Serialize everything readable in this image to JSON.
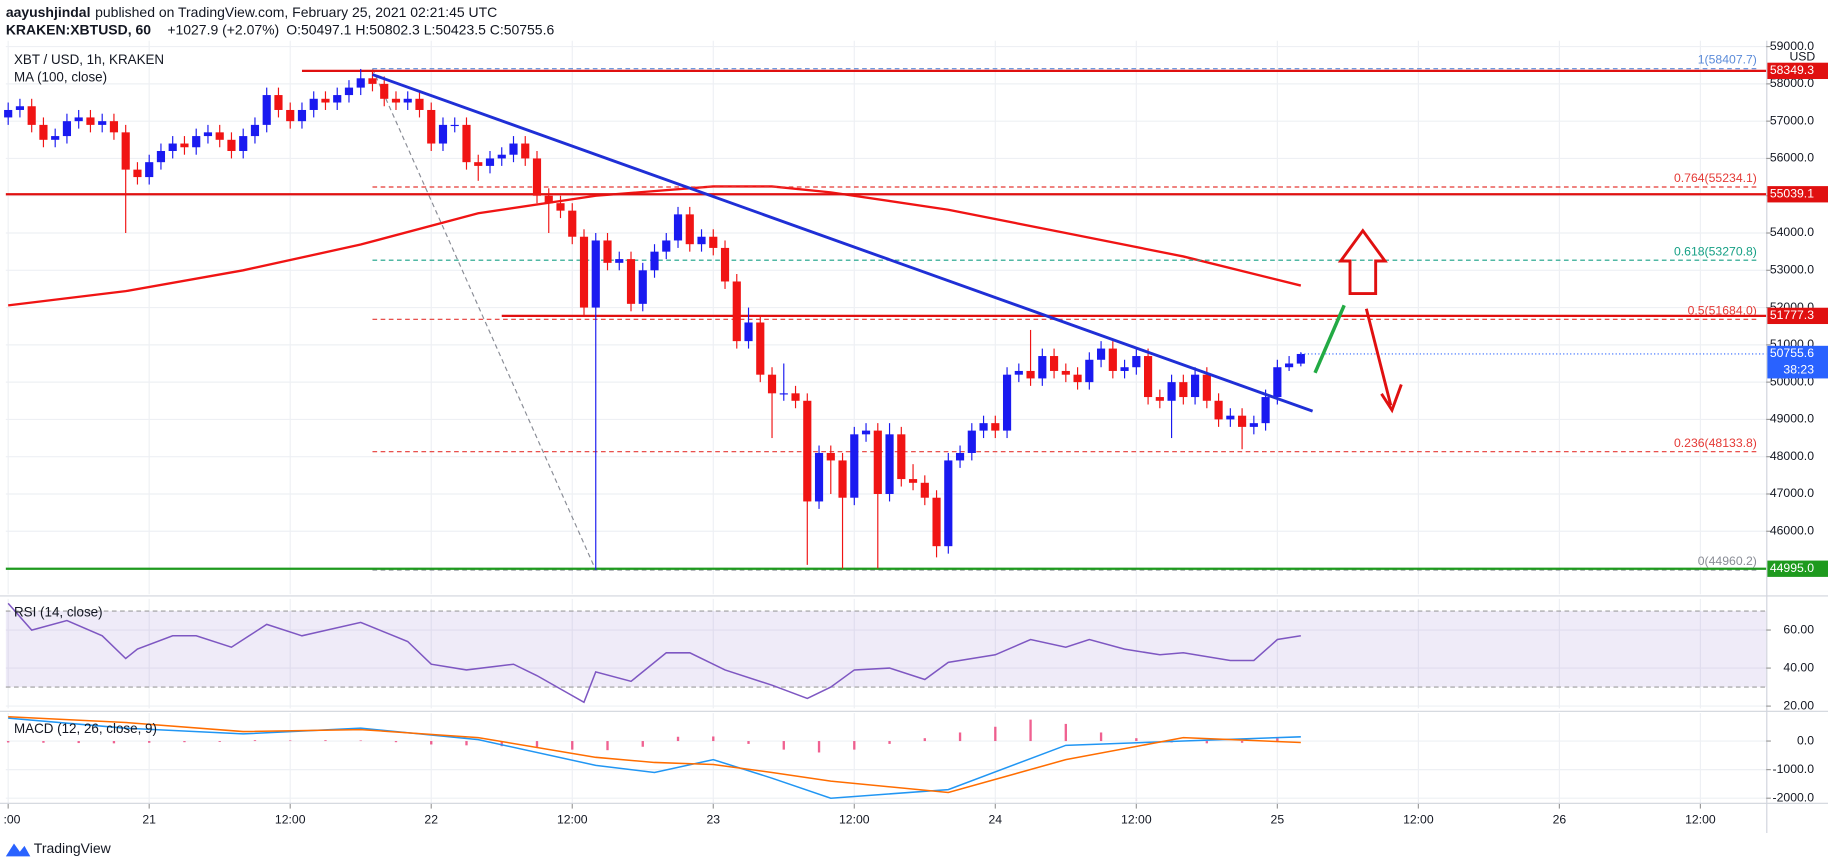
{
  "header": {
    "author": "aayushjindal",
    "published": "published on TradingView.com, February 25, 2021 02:21:45 UTC",
    "symbol": "KRAKEN:XBTUSD, 60",
    "change": "+1027.9 (+2.07%)",
    "ohlc": "O:50497.1 H:50802.3 L:50423.5 C:50755.6"
  },
  "footer": {
    "brand": "TradingView"
  },
  "chart_data": [
    {
      "type": "candlestick",
      "title": "XBT / USD, 1h, KRAKEN",
      "currency": "USD",
      "xlim": [
        -0.2,
        149.6
      ],
      "xticks": [
        {
          "value": 0,
          "label": ":00"
        },
        {
          "value": 12,
          "label": "21"
        },
        {
          "value": 24,
          "label": "12:00"
        },
        {
          "value": 36,
          "label": "22"
        },
        {
          "value": 48,
          "label": "12:00"
        },
        {
          "value": 60,
          "label": "23"
        },
        {
          "value": 72,
          "label": "12:00"
        },
        {
          "value": 84,
          "label": "24"
        },
        {
          "value": 96,
          "label": "12:00"
        },
        {
          "value": 108,
          "label": "25"
        },
        {
          "value": 120,
          "label": "12:00"
        },
        {
          "value": 132,
          "label": "26"
        },
        {
          "value": 144,
          "label": "12:00"
        }
      ],
      "ylim": [
        44312,
        59156
      ],
      "yticks": [
        {
          "value": 46000,
          "label": "46000.0"
        },
        {
          "value": 47000,
          "label": "47000.0"
        },
        {
          "value": 48000,
          "label": "48000.0"
        },
        {
          "value": 49000,
          "label": "49000.0"
        },
        {
          "value": 50000,
          "label": "50000.0"
        },
        {
          "value": 51000,
          "label": "51000.0"
        },
        {
          "value": 52000,
          "label": "52000.0"
        },
        {
          "value": 53000,
          "label": "53000.0"
        },
        {
          "value": 54000,
          "label": "54000.0"
        },
        {
          "value": 55000,
          "label": "55000.0"
        },
        {
          "value": 56000,
          "label": "56000.0"
        },
        {
          "value": 57000,
          "label": "57000.0"
        },
        {
          "value": 58000,
          "label": "58000.0"
        },
        {
          "value": 59000,
          "label": "59000.0"
        }
      ],
      "grid": true,
      "up_color": "#1a1af0",
      "down_color": "#f01414",
      "candles": {
        "open": [
          57100,
          57300,
          57400,
          56900,
          56500,
          56600,
          57000,
          57100,
          56900,
          57000,
          56700,
          55700,
          55500,
          55900,
          56200,
          56400,
          56300,
          56600,
          56700,
          56500,
          56200,
          56600,
          56900,
          57700,
          57300,
          57000,
          57300,
          57600,
          57500,
          57700,
          57900,
          58150,
          58000,
          57600,
          57500,
          57600,
          57300,
          56400,
          56900,
          56900,
          55900,
          55800,
          56000,
          56100,
          56400,
          56000,
          55000,
          54800,
          54600,
          53900,
          52000,
          53800,
          53200,
          53300,
          52100,
          53000,
          53500,
          53800,
          54500,
          53700,
          53900,
          53600,
          52700,
          51100,
          51600,
          50200,
          49700,
          49700,
          49500,
          46800,
          48100,
          47900,
          46900,
          48600,
          48700,
          47000,
          48600,
          47400,
          47300,
          46900,
          45600,
          47900,
          48100,
          48700,
          48900,
          48700,
          50200,
          50300,
          50100,
          50700,
          50300,
          50200,
          50000,
          50600,
          50900,
          50300,
          50400,
          50700,
          49600,
          49500,
          50000,
          49600,
          50200,
          49500,
          49000,
          49100,
          48800,
          48900,
          49600,
          50400,
          50497.1
        ],
        "high": [
          57500,
          57600,
          57600,
          57100,
          56800,
          57200,
          57300,
          57300,
          57200,
          57200,
          56900,
          55900,
          56100,
          56400,
          56600,
          56600,
          56800,
          56900,
          56900,
          56700,
          56800,
          57100,
          57900,
          57900,
          57500,
          57500,
          57800,
          57800,
          57900,
          58100,
          58400,
          58350,
          58200,
          57800,
          57800,
          57800,
          57500,
          57100,
          57100,
          57100,
          56100,
          56200,
          56300,
          56600,
          56600,
          56200,
          55200,
          55000,
          54800,
          54100,
          54000,
          54000,
          53500,
          53500,
          53200,
          53700,
          54000,
          54700,
          54700,
          54100,
          54100,
          53800,
          52900,
          52000,
          51800,
          50400,
          50500,
          49900,
          49700,
          48300,
          48300,
          48100,
          48800,
          48900,
          48900,
          48900,
          48800,
          47800,
          47500,
          47100,
          48100,
          48300,
          48900,
          49100,
          49100,
          50400,
          50500,
          51400,
          50900,
          50900,
          50500,
          50400,
          50800,
          51100,
          51100,
          50600,
          50900,
          50900,
          49800,
          50200,
          50200,
          50400,
          50400,
          49700,
          49300,
          49300,
          49100,
          49800,
          50600,
          50700,
          50802.3
        ],
        "low": [
          56900,
          57100,
          56700,
          56300,
          56300,
          56400,
          56800,
          56700,
          56700,
          56500,
          54000,
          55300,
          55300,
          55700,
          56000,
          56100,
          56100,
          56400,
          56300,
          56000,
          56000,
          56400,
          56700,
          57100,
          56800,
          56800,
          57100,
          57300,
          57300,
          57500,
          57700,
          57800,
          57400,
          57300,
          57300,
          57100,
          56200,
          56200,
          56700,
          55700,
          55400,
          55600,
          55800,
          55900,
          55800,
          54800,
          54000,
          54400,
          53700,
          51800,
          44960,
          53000,
          53000,
          51900,
          51900,
          52800,
          53300,
          53600,
          53500,
          53500,
          53400,
          52500,
          50900,
          50900,
          50000,
          48500,
          49500,
          49300,
          45100,
          46600,
          47000,
          45000,
          46700,
          48400,
          45000,
          46800,
          47200,
          47100,
          46700,
          45300,
          45400,
          47700,
          47900,
          48500,
          48500,
          48500,
          50000,
          49900,
          49900,
          50100,
          50000,
          49800,
          49800,
          50400,
          50100,
          50100,
          50200,
          49400,
          49300,
          48500,
          49400,
          49400,
          49300,
          48800,
          48800,
          48200,
          48600,
          48700,
          49400,
          50300,
          50423.5
        ],
        "close": [
          57300,
          57400,
          56900,
          56500,
          56600,
          57000,
          57100,
          56900,
          57000,
          56700,
          55700,
          55500,
          55900,
          56200,
          56400,
          56300,
          56600,
          56700,
          56500,
          56200,
          56600,
          56900,
          57700,
          57300,
          57000,
          57300,
          57600,
          57500,
          57700,
          57900,
          58150,
          58000,
          57600,
          57500,
          57600,
          57300,
          56400,
          56900,
          56900,
          55900,
          55800,
          56000,
          56100,
          56400,
          56000,
          55000,
          54800,
          54600,
          53900,
          52000,
          53800,
          53200,
          53300,
          52100,
          53000,
          53500,
          53800,
          54500,
          53700,
          53900,
          53600,
          52700,
          51100,
          51600,
          50200,
          49700,
          49700,
          49500,
          46800,
          48100,
          47900,
          46900,
          48600,
          48700,
          47000,
          48600,
          47400,
          47300,
          46900,
          45600,
          47900,
          48100,
          48700,
          48900,
          48700,
          50200,
          50300,
          50100,
          50700,
          50300,
          50200,
          50000,
          50600,
          50900,
          50300,
          50400,
          50700,
          49600,
          49500,
          50000,
          49600,
          50200,
          49500,
          49000,
          49100,
          48800,
          48900,
          49600,
          50400,
          50500,
          50755.6
        ]
      },
      "ma": {
        "name": "MA (100, close)",
        "color": "#f01414",
        "x": [
          0,
          10,
          20,
          30,
          40,
          50,
          60,
          65,
          70,
          80,
          90,
          100,
          110
        ],
        "values": [
          52060,
          52440,
          53000,
          53690,
          54530,
          55000,
          55250,
          55250,
          55090,
          54625,
          54000,
          53370,
          52590
        ]
      },
      "trendline": {
        "color": "#1f2fd6",
        "x": [
          31,
          111
        ],
        "values": [
          58250,
          49220
        ]
      },
      "fib": {
        "x": [
          31,
          50
        ],
        "levels": [
          {
            "label": "1(58407.7)",
            "value": 58407.7,
            "color": "#5b8bd9"
          },
          {
            "label": "0.764(55234.1)",
            "value": 55234.1,
            "color": "#e53935"
          },
          {
            "label": "0.618(53270.8)",
            "value": 53270.8,
            "color": "#16a085"
          },
          {
            "label": "0.5(51684.0)",
            "value": 51684.0,
            "color": "#e53935"
          },
          {
            "label": "0.236(48133.8)",
            "value": 48133.8,
            "color": "#e53935"
          },
          {
            "label": "0(44960.2)",
            "value": 44960.2,
            "color": "#8a8d96"
          }
        ]
      },
      "price_lines": [
        {
          "value": 58349.3,
          "color": "#e01010",
          "from": 25
        },
        {
          "value": 55039.1,
          "color": "#e01010"
        },
        {
          "value": 51777.3,
          "color": "#e01010",
          "from": 42
        },
        {
          "value": 44995,
          "label": "44995.0",
          "color": "#1e9a1e"
        }
      ],
      "last_price": {
        "value": 50755.6,
        "countdown": "38:23",
        "color": "#2962ff"
      }
    },
    {
      "type": "line",
      "title": "RSI (14, close)",
      "color": "#7e57c2",
      "x": [
        0,
        2,
        5,
        8,
        10,
        11,
        14,
        16,
        19,
        22,
        25,
        30,
        34,
        36,
        39,
        43,
        45,
        49,
        50,
        53,
        56,
        58,
        61,
        65,
        68,
        70,
        72,
        75,
        78,
        80,
        84,
        87,
        90,
        92,
        95,
        98,
        100,
        104,
        106,
        108,
        110
      ],
      "values": [
        74,
        60,
        65,
        57,
        45,
        50,
        57,
        57,
        51,
        63,
        57,
        64,
        54,
        42,
        39,
        42,
        36,
        22,
        38,
        33,
        48,
        48,
        39,
        31,
        24,
        30,
        39,
        40,
        34,
        43,
        47,
        55,
        51,
        55,
        50,
        47,
        48,
        44,
        44,
        55,
        57
      ],
      "ylim": [
        18.8,
        76.4
      ],
      "yticks": [
        {
          "value": 60,
          "label": "60.00"
        },
        {
          "value": 40,
          "label": "40.00"
        },
        {
          "value": 20,
          "label": "20.00"
        }
      ],
      "band": [
        30,
        70
      ]
    },
    {
      "type": "macd",
      "title": "MACD (12, 26, close, 9)",
      "ylim": [
        -2200,
        980
      ],
      "yticks": [
        {
          "value": 0,
          "label": "0.0"
        },
        {
          "value": -1000,
          "label": "-1000.0"
        },
        {
          "value": -2000,
          "label": "-2000.0"
        }
      ],
      "series": [
        {
          "color": "#2196f3",
          "x": [
            0,
            10,
            20,
            30,
            40,
            50,
            55,
            60,
            65,
            70,
            80,
            90,
            100,
            110
          ],
          "values": [
            800,
            450,
            250,
            450,
            50,
            -850,
            -1100,
            -650,
            -1300,
            -2000,
            -1700,
            -150,
            0,
            150
          ]
        },
        {
          "color": "#ff6d00",
          "x": [
            0,
            10,
            20,
            30,
            40,
            50,
            55,
            60,
            65,
            70,
            80,
            90,
            100,
            110
          ],
          "values": [
            850,
            650,
            330,
            400,
            120,
            -570,
            -750,
            -820,
            -1100,
            -1400,
            -1800,
            -650,
            120,
            -50
          ]
        }
      ],
      "histogram": {
        "color": "#e91e63",
        "x": [
          0,
          3,
          6,
          9,
          12,
          15,
          18,
          21,
          24,
          27,
          30,
          33,
          36,
          39,
          42,
          45,
          48,
          51,
          54,
          57,
          60,
          63,
          66,
          69,
          72,
          75,
          78,
          81,
          84,
          87,
          90,
          93,
          96,
          99,
          102,
          105,
          108
        ],
        "values": [
          -50,
          -60,
          -70,
          -80,
          -60,
          -40,
          -30,
          30,
          20,
          30,
          20,
          -40,
          -120,
          -150,
          -180,
          -220,
          -300,
          -320,
          -200,
          150,
          160,
          -100,
          -300,
          -400,
          -300,
          -100,
          100,
          300,
          500,
          750,
          600,
          300,
          100,
          -50,
          -80,
          -60,
          100
        ]
      }
    }
  ]
}
